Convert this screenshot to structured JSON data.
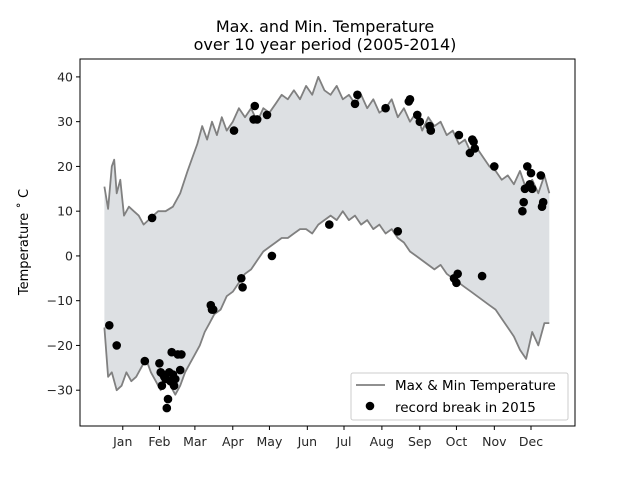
{
  "chart_data": {
    "type": "line",
    "title_lines": [
      "Max. and Min. Temperature",
      "over 10 year period (2005-2014)"
    ],
    "xlabel": "",
    "ylabel": "Temperature ˚ C",
    "x_unit": "day of year",
    "xlim": [
      -20,
      385
    ],
    "ylim": [
      -38,
      44
    ],
    "x_ticks": [
      {
        "label": "Jan",
        "value": 15
      },
      {
        "label": "Feb",
        "value": 45
      },
      {
        "label": "Mar",
        "value": 74
      },
      {
        "label": "Apr",
        "value": 105
      },
      {
        "label": "May",
        "value": 135
      },
      {
        "label": "Jun",
        "value": 166
      },
      {
        "label": "Jul",
        "value": 196
      },
      {
        "label": "Aug",
        "value": 227
      },
      {
        "label": "Sep",
        "value": 258
      },
      {
        "label": "Oct",
        "value": 288
      },
      {
        "label": "Nov",
        "value": 319
      },
      {
        "label": "Dec",
        "value": 349
      }
    ],
    "y_ticks": [
      {
        "label": "−30",
        "value": -30
      },
      {
        "label": "−20",
        "value": -20
      },
      {
        "label": "−10",
        "value": -10
      },
      {
        "label": "0",
        "value": 0
      },
      {
        "label": "10",
        "value": 10
      },
      {
        "label": "20",
        "value": 20
      },
      {
        "label": "30",
        "value": 30
      },
      {
        "label": "40",
        "value": 40
      }
    ],
    "series": [
      {
        "name": "Max & Min Temperature (max)",
        "x": [
          0,
          3,
          6,
          8,
          10,
          13,
          16,
          20,
          24,
          28,
          32,
          36,
          40,
          44,
          50,
          56,
          62,
          68,
          72,
          76,
          80,
          84,
          88,
          92,
          96,
          100,
          105,
          110,
          115,
          120,
          125,
          130,
          135,
          140,
          145,
          150,
          155,
          160,
          165,
          170,
          175,
          180,
          185,
          190,
          195,
          200,
          205,
          210,
          215,
          220,
          225,
          230,
          235,
          240,
          245,
          250,
          255,
          260,
          265,
          270,
          275,
          280,
          285,
          290,
          295,
          300,
          305,
          310,
          315,
          320,
          325,
          330,
          335,
          340,
          345,
          350,
          355,
          360,
          364
        ],
        "values": [
          15.5,
          10.5,
          20,
          21.5,
          14,
          17,
          9,
          11,
          10,
          9,
          7,
          8,
          9,
          10,
          10,
          11,
          14,
          19,
          22,
          25,
          29,
          26,
          30,
          27,
          31,
          28,
          30,
          33,
          31,
          33,
          30,
          33,
          32,
          34,
          36,
          35,
          37,
          35,
          38,
          36,
          40,
          37,
          36,
          38,
          35,
          36,
          34,
          36,
          33,
          35,
          32,
          33,
          35,
          31,
          33,
          30,
          32,
          28,
          31,
          29,
          30,
          27,
          28,
          25,
          26,
          23,
          24,
          22,
          20,
          19,
          17,
          18,
          16,
          19,
          15,
          17,
          14,
          18,
          14
        ]
      },
      {
        "name": "Max & Min Temperature (min)",
        "x": [
          0,
          3,
          6,
          10,
          14,
          18,
          22,
          26,
          30,
          34,
          38,
          42,
          46,
          50,
          54,
          58,
          62,
          66,
          70,
          74,
          78,
          82,
          86,
          90,
          95,
          100,
          105,
          110,
          115,
          120,
          125,
          130,
          135,
          140,
          145,
          150,
          155,
          160,
          165,
          170,
          175,
          180,
          185,
          190,
          195,
          200,
          205,
          210,
          215,
          220,
          225,
          230,
          235,
          240,
          245,
          250,
          255,
          260,
          265,
          270,
          275,
          280,
          285,
          290,
          295,
          300,
          305,
          310,
          315,
          320,
          325,
          330,
          335,
          340,
          345,
          350,
          355,
          360,
          364
        ],
        "values": [
          -16,
          -27,
          -26,
          -30,
          -29,
          -26,
          -28,
          -27,
          -25,
          -23,
          -26,
          -28,
          -30,
          -27,
          -29,
          -31,
          -29,
          -26,
          -24,
          -22,
          -20,
          -17,
          -15,
          -13,
          -12,
          -9,
          -8,
          -6,
          -4,
          -3,
          -1,
          1,
          2,
          3,
          4,
          4,
          5,
          6,
          6,
          5,
          7,
          8,
          9,
          8,
          10,
          8,
          9,
          7,
          8,
          6,
          7,
          5,
          6,
          4,
          3,
          1,
          0,
          -1,
          -2,
          -3,
          -2,
          -4,
          -5,
          -6,
          -7,
          -8,
          -9,
          -10,
          -11,
          -12,
          -14,
          -16,
          -18,
          -21,
          -23,
          -17,
          -20,
          -15,
          -15
        ]
      },
      {
        "name": "record break in 2015",
        "type": "scatter",
        "points": [
          [
            4,
            -15.5
          ],
          [
            10,
            -20
          ],
          [
            33,
            -23.5
          ],
          [
            39,
            8.5
          ],
          [
            45,
            -24
          ],
          [
            46,
            -26
          ],
          [
            47,
            -29
          ],
          [
            48,
            -26.5
          ],
          [
            49,
            -27
          ],
          [
            50,
            -27.5
          ],
          [
            51,
            -34
          ],
          [
            52,
            -32
          ],
          [
            53,
            -26
          ],
          [
            54,
            -28
          ],
          [
            55,
            -21.5
          ],
          [
            56,
            -26.5
          ],
          [
            57,
            -29
          ],
          [
            58,
            -27.5
          ],
          [
            60,
            -22
          ],
          [
            62,
            -25.5
          ],
          [
            63,
            -22
          ],
          [
            87,
            -11
          ],
          [
            88,
            -12
          ],
          [
            89,
            -12
          ],
          [
            106,
            28
          ],
          [
            112,
            -5
          ],
          [
            113,
            -7
          ],
          [
            122,
            30.5
          ],
          [
            123,
            33.5
          ],
          [
            125,
            30.5
          ],
          [
            133,
            31.5
          ],
          [
            137,
            0
          ],
          [
            184,
            7
          ],
          [
            205,
            34
          ],
          [
            207,
            36
          ],
          [
            230,
            33
          ],
          [
            240,
            5.5
          ],
          [
            249,
            34.5
          ],
          [
            250,
            35
          ],
          [
            256,
            31.5
          ],
          [
            258,
            30
          ],
          [
            266,
            29
          ],
          [
            267,
            28
          ],
          [
            286,
            -5
          ],
          [
            288,
            -6
          ],
          [
            289,
            -4
          ],
          [
            290,
            27
          ],
          [
            299,
            23
          ],
          [
            301,
            26
          ],
          [
            302,
            25.5
          ],
          [
            303,
            24
          ],
          [
            309,
            -4.5
          ],
          [
            319,
            20
          ],
          [
            342,
            10
          ],
          [
            343,
            12
          ],
          [
            344,
            15
          ],
          [
            346,
            20
          ],
          [
            347,
            15.5
          ],
          [
            348,
            16
          ],
          [
            349,
            18.5
          ],
          [
            350,
            15
          ],
          [
            357,
            18
          ],
          [
            358,
            11
          ],
          [
            359,
            12
          ]
        ]
      }
    ],
    "legend": {
      "placement": "lower right",
      "entries": [
        {
          "label": "Max & Min Temperature",
          "marker": "line",
          "color": "#808080"
        },
        {
          "label": "record break in 2015",
          "marker": "circle",
          "color": "#000000"
        }
      ]
    },
    "colors": {
      "line": "#808080",
      "fill": "#dde0e3",
      "points": "#000000",
      "axes": "#000000"
    }
  }
}
